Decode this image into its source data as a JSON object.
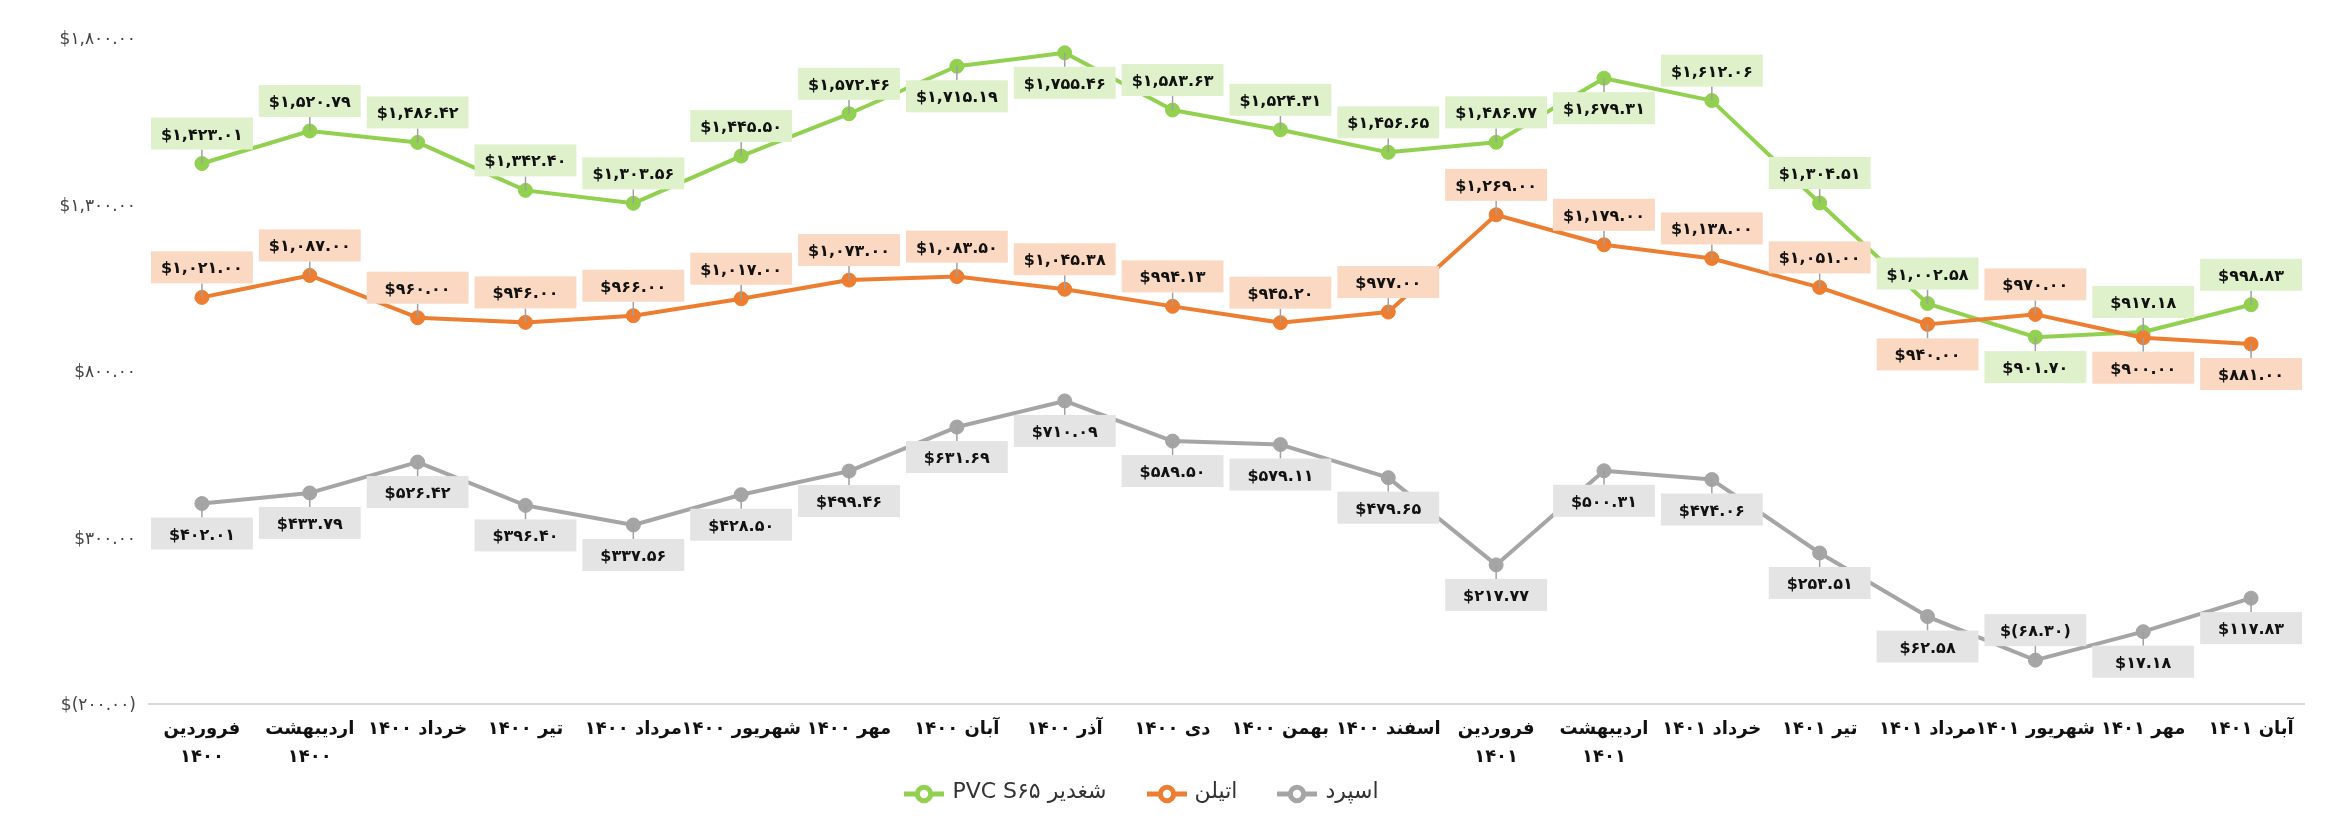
{
  "chart_data": {
    "type": "line",
    "categories": [
      "فروردین ۱۴۰۰",
      "اردیبهشت ۱۴۰۰",
      "خرداد ۱۴۰۰",
      "تیر ۱۴۰۰",
      "مرداد ۱۴۰۰",
      "شهریور ۱۴۰۰",
      "مهر ۱۴۰۰",
      "آبان ۱۴۰۰",
      "آذر ۱۴۰۰",
      "دی ۱۴۰۰",
      "بهمن ۱۴۰۰",
      "اسفند ۱۴۰۰",
      "فروردین ۱۴۰۱",
      "اردیبهشت ۱۴۰۱",
      "خرداد ۱۴۰۱",
      "تیر ۱۴۰۱",
      "مرداد ۱۴۰۱",
      "شهریور ۱۴۰۱",
      "مهر ۱۴۰۱",
      "آبان ۱۴۰۱"
    ],
    "series": [
      {
        "name": "شغدیر PVC S۶۵",
        "color": "#92d050",
        "values": [
          1423.01,
          1520.79,
          1486.42,
          1342.4,
          1303.56,
          1445.5,
          1572.46,
          1715.19,
          1755.46,
          1583.63,
          1524.31,
          1456.65,
          1486.77,
          1679.31,
          1612.06,
          1304.51,
          1002.58,
          901.7,
          917.18,
          998.83
        ],
        "value_labels": [
          "$۱,۴۲۳.۰۱",
          "$۱,۵۲۰.۷۹",
          "$۱,۴۸۶.۴۲",
          "$۱,۳۴۲.۴۰",
          "$۱,۳۰۳.۵۶",
          "$۱,۴۴۵.۵۰",
          "$۱,۵۷۲.۴۶",
          "$۱,۷۱۵.۱۹",
          "$۱,۷۵۵.۴۶",
          "$۱,۵۸۳.۶۳",
          "$۱,۵۲۴.۳۱",
          "$۱,۴۵۶.۶۵",
          "$۱,۴۸۶.۷۷",
          "$۱,۶۷۹.۳۱",
          "$۱,۶۱۲.۰۶",
          "$۱,۳۰۴.۵۱",
          "$۱,۰۰۲.۵۸",
          "$۹۰۱.۷۰",
          "$۹۱۷.۱۸",
          "$۹۹۸.۸۳"
        ]
      },
      {
        "name": "اتیلن",
        "color": "#ed7d31",
        "values": [
          1021.0,
          1087.0,
          960.0,
          946.0,
          966.0,
          1017.0,
          1073.0,
          1083.5,
          1045.38,
          994.13,
          945.2,
          977.0,
          1269.0,
          1179.0,
          1138.0,
          1051.0,
          940.0,
          970.0,
          900.0,
          881.0
        ],
        "value_labels": [
          "$۱,۰۲۱.۰۰",
          "$۱,۰۸۷.۰۰",
          "$۹۶۰.۰۰",
          "$۹۴۶.۰۰",
          "$۹۶۶.۰۰",
          "$۱,۰۱۷.۰۰",
          "$۱,۰۷۳.۰۰",
          "$۱,۰۸۳.۵۰",
          "$۱,۰۴۵.۳۸",
          "$۹۹۴.۱۳",
          "$۹۴۵.۲۰",
          "$۹۷۷.۰۰",
          "$۱,۲۶۹.۰۰",
          "$۱,۱۷۹.۰۰",
          "$۱,۱۳۸.۰۰",
          "$۱,۰۵۱.۰۰",
          "$۹۴۰.۰۰",
          "$۹۷۰.۰۰",
          "$۹۰۰.۰۰",
          "$۸۸۱.۰۰"
        ]
      },
      {
        "name": "اسپرد",
        "color": "#a5a5a5",
        "values": [
          402.01,
          433.79,
          526.42,
          396.4,
          337.56,
          428.5,
          499.46,
          631.69,
          710.09,
          589.5,
          579.11,
          479.65,
          217.77,
          500.31,
          474.06,
          253.51,
          62.58,
          -68.3,
          17.18,
          117.83
        ],
        "value_labels": [
          "$۴۰۲.۰۱",
          "$۴۳۳.۷۹",
          "$۵۲۶.۴۲",
          "$۳۹۶.۴۰",
          "$۳۳۷.۵۶",
          "$۴۲۸.۵۰",
          "$۴۹۹.۴۶",
          "$۶۳۱.۶۹",
          "$۷۱۰.۰۹",
          "$۵۸۹.۵۰",
          "$۵۷۹.۱۱",
          "$۴۷۹.۶۵",
          "$۲۱۷.۷۷",
          "$۵۰۰.۳۱",
          "$۴۷۴.۰۶",
          "$۲۵۳.۵۱",
          "$۶۲.۵۸",
          "$(۶۸.۳۰)",
          "$۱۷.۱۸",
          "$۱۱۷.۸۳"
        ]
      }
    ],
    "ylim": [
      -200,
      1800
    ],
    "yticks": [
      {
        "value": -200,
        "label": "$(۲۰۰.۰۰)"
      },
      {
        "value": 300,
        "label": "$۳۰۰.۰۰"
      },
      {
        "value": 800,
        "label": "$۸۰۰.۰۰"
      },
      {
        "value": 1300,
        "label": "$۱,۳۰۰.۰۰"
      },
      {
        "value": 1800,
        "label": "$۱,۸۰۰.۰۰"
      }
    ],
    "legend": "bottom",
    "marker": "circle"
  }
}
